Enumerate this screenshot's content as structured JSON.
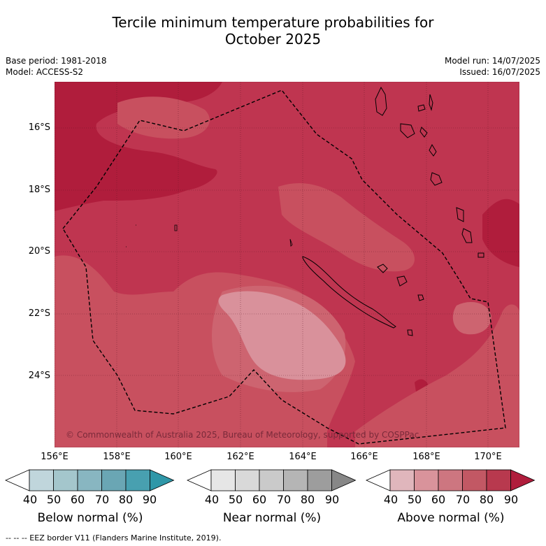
{
  "title": {
    "line1": "Tercile minimum temperature probabilities for",
    "line2": "October 2025"
  },
  "meta": {
    "base_period": "Base period: 1981-2018",
    "model": "Model: ACCESS-S2",
    "model_run": "Model run: 14/07/2025",
    "issued": "Issued: 16/07/2025"
  },
  "map": {
    "latitude_labels": [
      "16°S",
      "18°S",
      "20°S",
      "22°S",
      "24°S"
    ],
    "longitude_labels": [
      "156°E",
      "158°E",
      "160°E",
      "162°E",
      "164°E",
      "166°E",
      "168°E",
      "170°E"
    ],
    "copyright": "© Commonwealth of Australia 2025, Bureau of Meteorology, supported by COSPPac",
    "colors": {
      "p90": "#b01d3c",
      "p80": "#bf3550",
      "p70": "#c8505f",
      "p60": "#cd6470",
      "p50": "#d9919b",
      "land_outline": "#000000"
    }
  },
  "colorbars": [
    {
      "label": "Below normal (%)",
      "ticks": [
        "40",
        "50",
        "60",
        "70",
        "80",
        "90"
      ],
      "colors": [
        "#ffffff",
        "#c0d6dc",
        "#a4c6cc",
        "#88b6c1",
        "#6aa6b4",
        "#48a0b0",
        "#2f97a8"
      ]
    },
    {
      "label": "Near normal (%)",
      "ticks": [
        "40",
        "50",
        "60",
        "70",
        "80",
        "90"
      ],
      "colors": [
        "#ffffff",
        "#e6e6e6",
        "#d9d9d9",
        "#cacaca",
        "#b5b5b5",
        "#9d9d9d",
        "#878787"
      ]
    },
    {
      "label": "Above normal (%)",
      "ticks": [
        "40",
        "50",
        "60",
        "70",
        "80",
        "90"
      ],
      "colors": [
        "#ffffff",
        "#e0b6bc",
        "#d9939b",
        "#cd7680",
        "#c25864",
        "#b8394e",
        "#b01d3c"
      ]
    }
  ],
  "footer": "--  --  -- EEZ border V11 (Flanders Marine Institute, 2019)."
}
